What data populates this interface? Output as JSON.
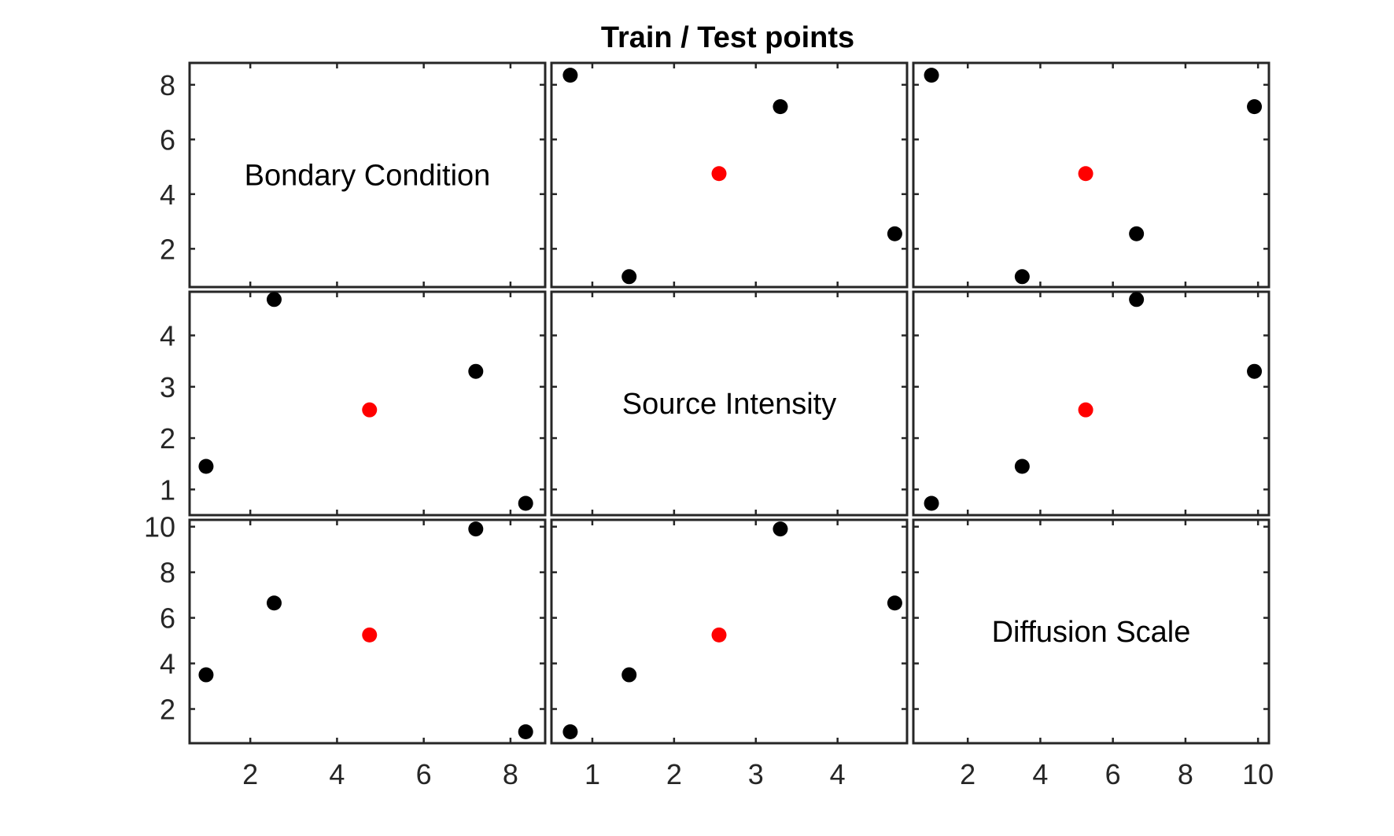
{
  "chart_data": {
    "type": "scatter",
    "title": "Train / Test points",
    "variables": [
      {
        "name": "Bondary Condition",
        "lim": [
          0.6,
          8.8
        ],
        "ticks": [
          2,
          4,
          6,
          8
        ],
        "tick_labels": [
          "2",
          "4",
          "6",
          "8"
        ]
      },
      {
        "name": "Source Intensity",
        "lim": [
          0.5,
          4.85
        ],
        "ticks": [
          1,
          2,
          3,
          4
        ],
        "tick_labels": [
          "1",
          "2",
          "3",
          "4"
        ]
      },
      {
        "name": "Diffusion Scale",
        "lim": [
          0.5,
          10.3
        ],
        "ticks": [
          2,
          4,
          6,
          8,
          10
        ],
        "tick_labels": [
          "2",
          "4",
          "6",
          "8",
          "10"
        ]
      }
    ],
    "series": [
      {
        "color": "#000000",
        "points": [
          [
            0.98,
            1.45,
            3.5
          ],
          [
            2.55,
            4.7,
            6.65
          ],
          [
            7.2,
            3.3,
            9.9
          ],
          [
            8.35,
            0.73,
            1.0
          ]
        ]
      },
      {
        "color": "#ff0000",
        "points": [
          [
            4.75,
            2.55,
            5.25
          ]
        ]
      }
    ],
    "grid": false,
    "legend": "none"
  }
}
